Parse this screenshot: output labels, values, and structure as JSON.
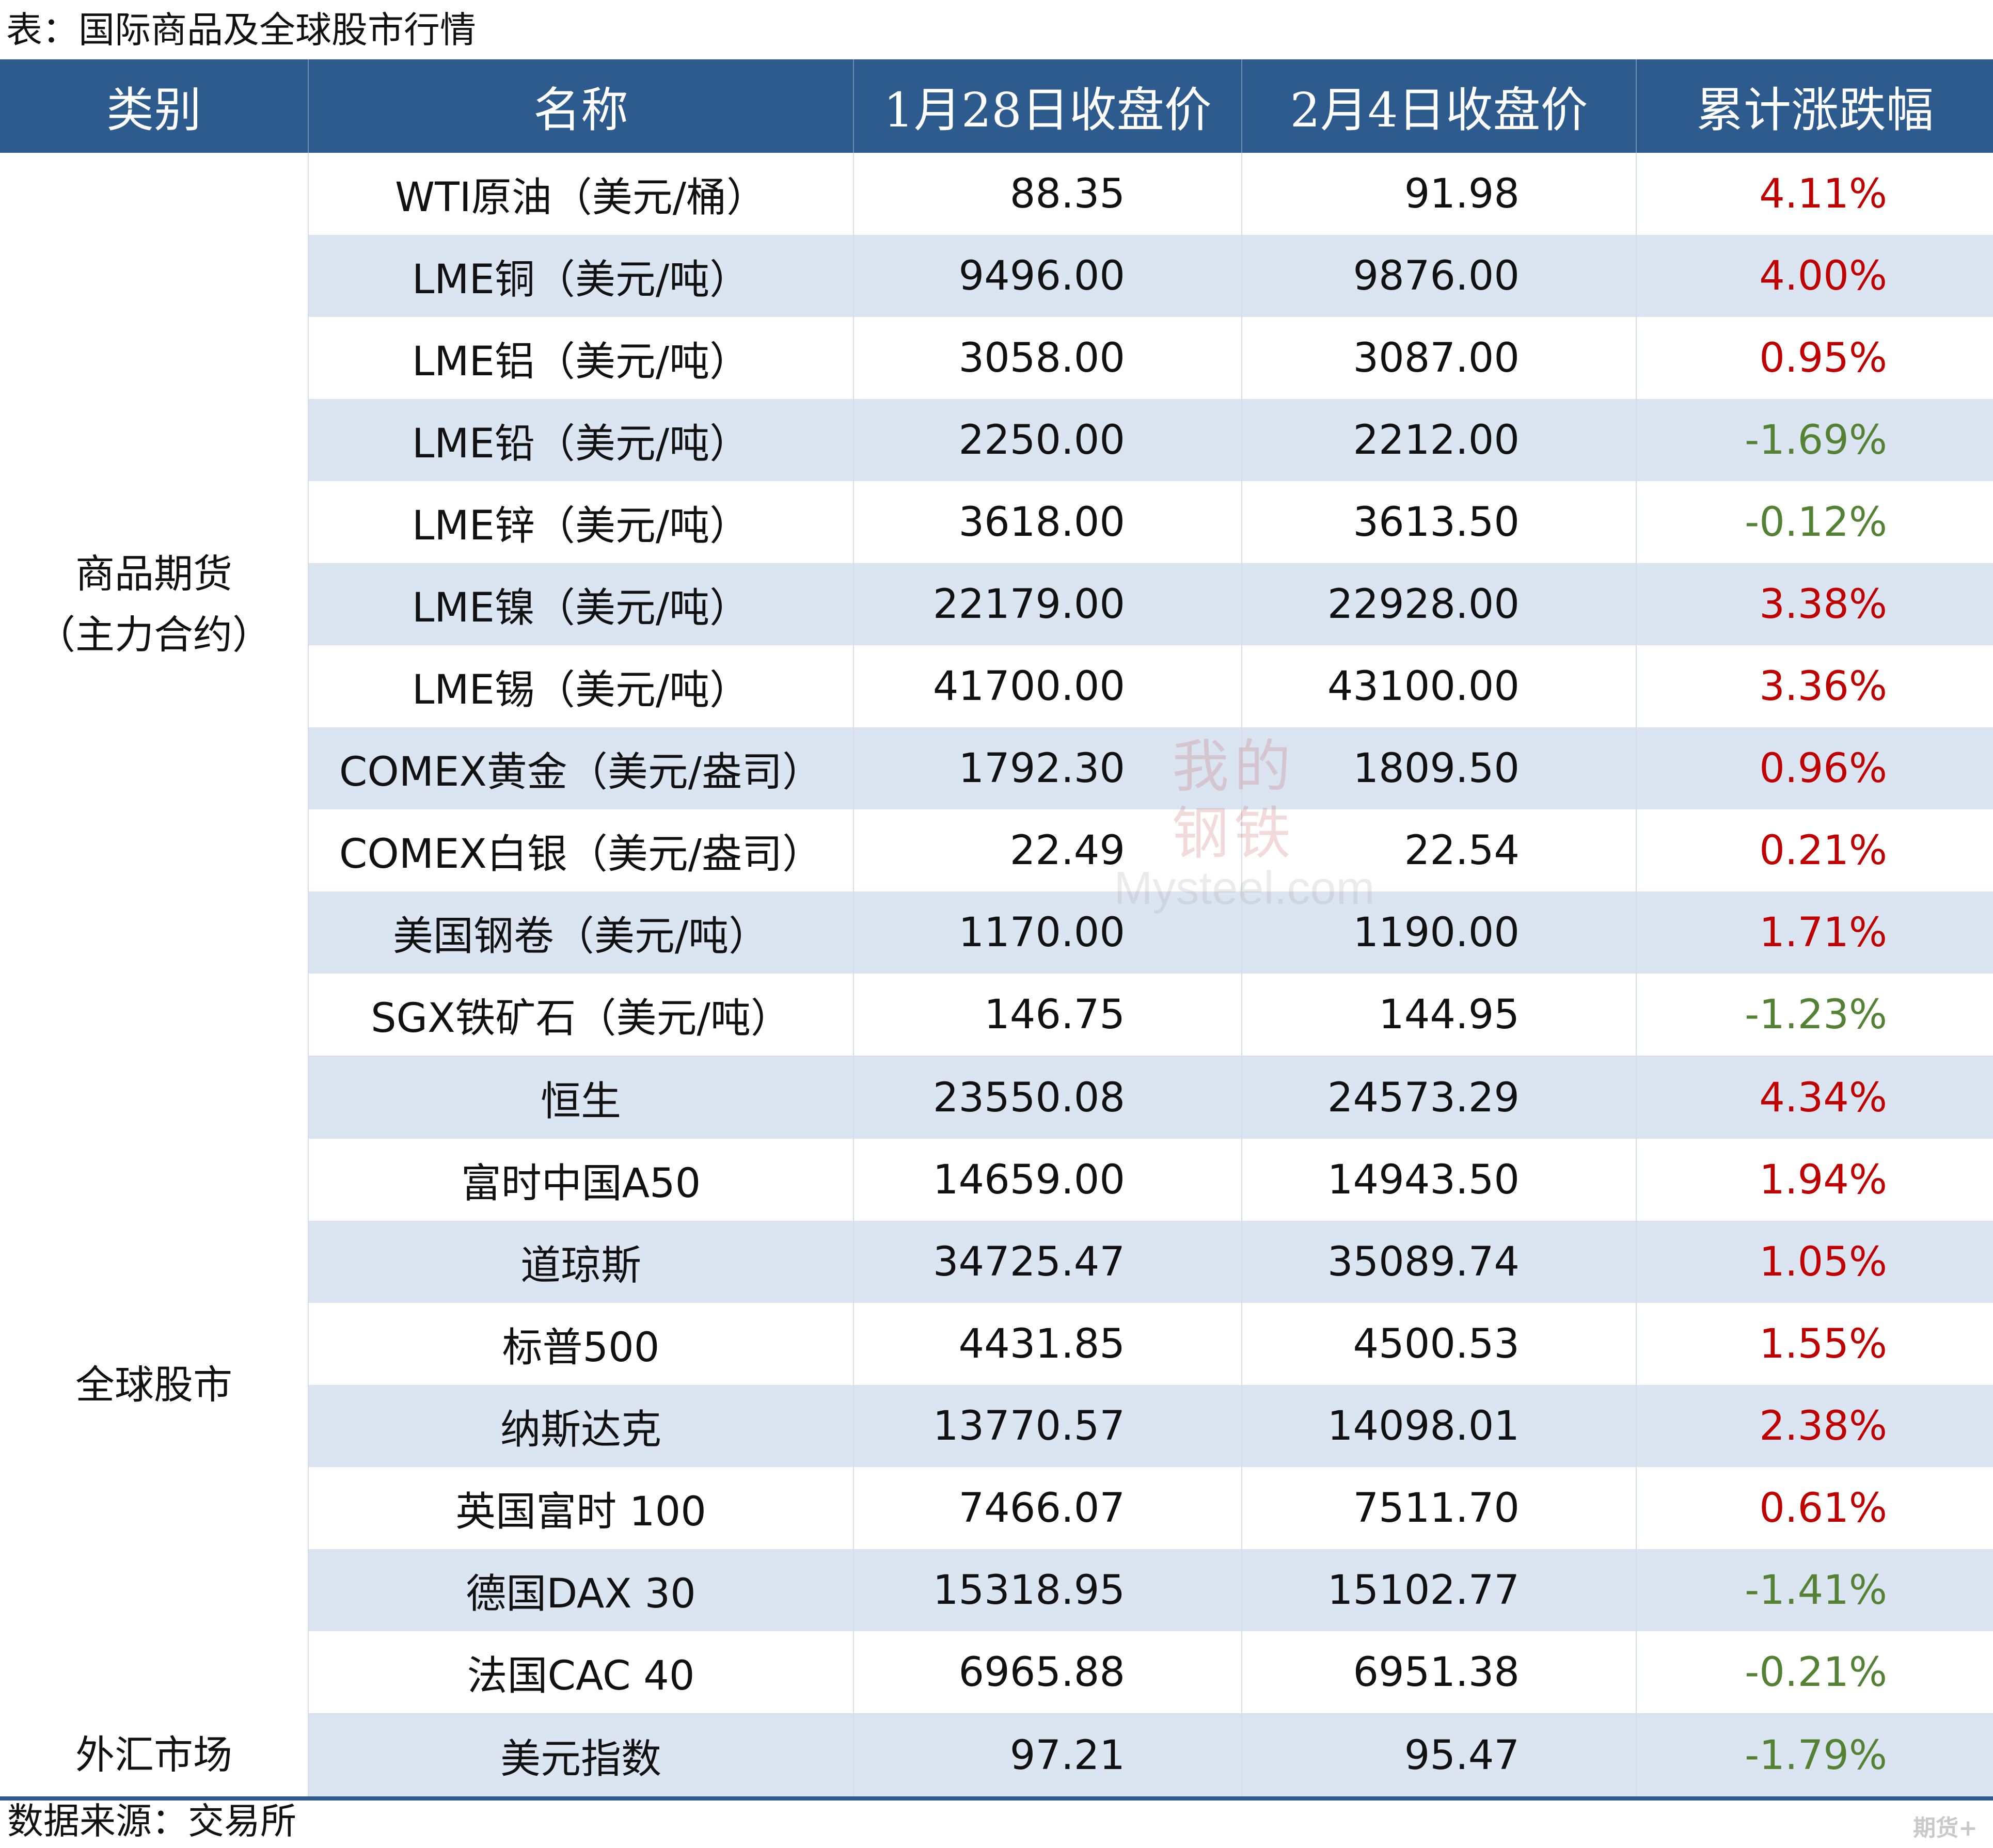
{
  "caption": "表：国际商品及全球股市行情",
  "headers": {
    "category": "类别",
    "name": "名称",
    "close_jan28": "1月28日收盘价",
    "close_feb4": "2月4日收盘价",
    "change": "累计涨跌幅"
  },
  "categories": {
    "commodities_line1": "商品期货",
    "commodities_line2": "（主力合约）",
    "stocks": "全球股市",
    "forex": "外汇市场"
  },
  "rows": [
    {
      "name": "WTI原油（美元/桶）",
      "jan28": "88.35",
      "feb4": "91.98",
      "change": "4.11%"
    },
    {
      "name": "LME铜（美元/吨）",
      "jan28": "9496.00",
      "feb4": "9876.00",
      "change": "4.00%"
    },
    {
      "name": "LME铝（美元/吨）",
      "jan28": "3058.00",
      "feb4": "3087.00",
      "change": "0.95%"
    },
    {
      "name": "LME铅（美元/吨）",
      "jan28": "2250.00",
      "feb4": "2212.00",
      "change": "-1.69%"
    },
    {
      "name": "LME锌（美元/吨）",
      "jan28": "3618.00",
      "feb4": "3613.50",
      "change": "-0.12%"
    },
    {
      "name": "LME镍（美元/吨）",
      "jan28": "22179.00",
      "feb4": "22928.00",
      "change": "3.38%"
    },
    {
      "name": "LME锡（美元/吨）",
      "jan28": "41700.00",
      "feb4": "43100.00",
      "change": "3.36%"
    },
    {
      "name": "COMEX黄金（美元/盎司）",
      "jan28": "1792.30",
      "feb4": "1809.50",
      "change": "0.96%"
    },
    {
      "name": "COMEX白银（美元/盎司）",
      "jan28": "22.49",
      "feb4": "22.54",
      "change": "0.21%"
    },
    {
      "name": "美国钢卷（美元/吨）",
      "jan28": "1170.00",
      "feb4": "1190.00",
      "change": "1.71%"
    },
    {
      "name": "SGX铁矿石（美元/吨）",
      "jan28": "146.75",
      "feb4": "144.95",
      "change": "-1.23%"
    },
    {
      "name": "恒生",
      "jan28": "23550.08",
      "feb4": "24573.29",
      "change": "4.34%"
    },
    {
      "name": "富时中国A50",
      "jan28": "14659.00",
      "feb4": "14943.50",
      "change": "1.94%"
    },
    {
      "name": "道琼斯",
      "jan28": "34725.47",
      "feb4": "35089.74",
      "change": "1.05%"
    },
    {
      "name": "标普500",
      "jan28": "4431.85",
      "feb4": "4500.53",
      "change": "1.55%"
    },
    {
      "name": "纳斯达克",
      "jan28": "13770.57",
      "feb4": "14098.01",
      "change": "2.38%"
    },
    {
      "name": "英国富时 100",
      "jan28": "7466.07",
      "feb4": "7511.70",
      "change": "0.61%"
    },
    {
      "name": "德国DAX 30",
      "jan28": "15318.95",
      "feb4": "15102.77",
      "change": "-1.41%"
    },
    {
      "name": "法国CAC 40",
      "jan28": "6965.88",
      "feb4": "6951.38",
      "change": "-0.21%"
    },
    {
      "name": "美元指数",
      "jan28": "97.21",
      "feb4": "95.47",
      "change": "-1.79%"
    }
  ],
  "colors": {
    "header_bg": "#2d5b8e",
    "row_shade": "#dbe5f1",
    "rise": "#c00000",
    "fall": "#548235"
  },
  "source": "数据来源：交易所",
  "watermark": {
    "cn_line1": "我的",
    "cn_line2": "钢铁",
    "en": "Mysteel.com"
  },
  "corner_tag": "期货+"
}
